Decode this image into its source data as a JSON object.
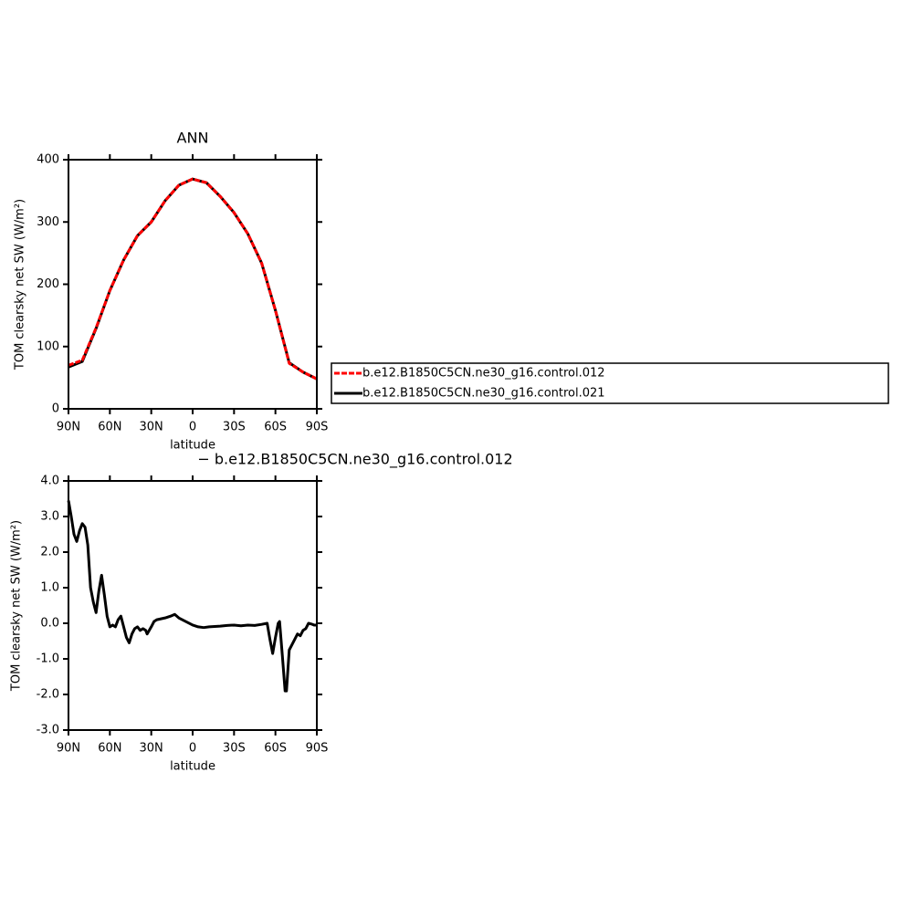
{
  "chart_data": [
    {
      "type": "line",
      "title": "ANN",
      "ylabel": "TOM clearsky net SW (W/m²)",
      "xlabel": "latitude",
      "x": [
        90,
        80,
        70,
        60,
        50,
        40,
        30,
        20,
        10,
        0,
        -10,
        -20,
        -30,
        -40,
        -50,
        -60,
        -70,
        -80,
        -90
      ],
      "series": [
        {
          "name": "b.e12.B1850C5CN.ne30_g16.control.012",
          "color": "#ff0000",
          "dashed": true,
          "values": [
            70,
            78,
            130,
            190,
            239,
            278,
            300,
            334,
            359,
            369,
            363,
            341,
            315,
            281,
            234,
            158,
            73,
            59,
            48
          ]
        },
        {
          "name": "b.e12.B1850C5CN.ne30_g16.control.021",
          "color": "#000000",
          "dashed": false,
          "values": [
            67,
            76,
            129,
            190,
            239,
            278,
            300,
            334,
            359,
            369,
            363,
            341,
            315,
            281,
            234,
            158,
            74,
            59,
            48
          ]
        }
      ],
      "xlim": [
        90,
        -90
      ],
      "ylim": [
        0,
        400
      ],
      "xticks": [
        {
          "value": 90,
          "label": "90N"
        },
        {
          "value": 60,
          "label": "60N"
        },
        {
          "value": 30,
          "label": "30N"
        },
        0,
        {
          "value": -30,
          "label": "30S"
        },
        {
          "value": -60,
          "label": "60S"
        },
        {
          "value": -90,
          "label": "90S"
        }
      ],
      "yticks": [
        0,
        100,
        200,
        300,
        400
      ],
      "legend": "right"
    },
    {
      "type": "line",
      "title": "− b.e12.B1850C5CN.ne30_g16.control.012",
      "ylabel": "TOM clearsky net SW (W/m²)",
      "xlabel": "latitude",
      "x": [
        90,
        88,
        86,
        84,
        82,
        80,
        78,
        76,
        74,
        72,
        70,
        68,
        66,
        64,
        62,
        60,
        58,
        56,
        54,
        52,
        50,
        48,
        46,
        44,
        42,
        40,
        38,
        36,
        34,
        33,
        30,
        28,
        26,
        20,
        16,
        13,
        10,
        5,
        0,
        -4,
        -8,
        -12,
        -20,
        -25,
        -30,
        -35,
        -40,
        -45,
        -50,
        -54,
        -56,
        -58,
        -60,
        -62,
        -63,
        -65,
        -67,
        -68,
        -70,
        -72,
        -74,
        -76,
        -78,
        -80,
        -82,
        -84,
        -86,
        -88,
        -90
      ],
      "series": [
        {
          "color": "#000000",
          "values": [
            3.45,
            3.0,
            2.5,
            2.3,
            2.6,
            2.8,
            2.7,
            2.2,
            1.0,
            0.6,
            0.3,
            0.9,
            1.35,
            0.8,
            0.2,
            -0.1,
            -0.05,
            -0.1,
            0.1,
            0.2,
            -0.1,
            -0.4,
            -0.55,
            -0.3,
            -0.15,
            -0.1,
            -0.2,
            -0.15,
            -0.2,
            -0.3,
            -0.1,
            0.05,
            0.1,
            0.15,
            0.2,
            0.25,
            0.15,
            0.05,
            -0.05,
            -0.1,
            -0.12,
            -0.1,
            -0.08,
            -0.06,
            -0.05,
            -0.07,
            -0.05,
            -0.06,
            -0.03,
            0.0,
            -0.45,
            -0.85,
            -0.4,
            0.0,
            0.05,
            -0.9,
            -1.9,
            -1.9,
            -0.75,
            -0.6,
            -0.45,
            -0.3,
            -0.35,
            -0.2,
            -0.15,
            0.0,
            -0.02,
            -0.05,
            -0.05
          ]
        }
      ],
      "xlim": [
        90,
        -90
      ],
      "ylim": [
        -3,
        4
      ],
      "xticks": [
        {
          "value": 90,
          "label": "90N"
        },
        {
          "value": 60,
          "label": "60N"
        },
        {
          "value": 30,
          "label": "30N"
        },
        0,
        {
          "value": -30,
          "label": "30S"
        },
        {
          "value": -60,
          "label": "60S"
        },
        {
          "value": -90,
          "label": "90S"
        }
      ],
      "yticks": [
        {
          "value": -3,
          "label": "-3.0"
        },
        {
          "value": -2,
          "label": "-2.0"
        },
        {
          "value": -1,
          "label": "-1.0"
        },
        {
          "value": 0,
          "label": "0.0"
        },
        {
          "value": 1,
          "label": "1.0"
        },
        {
          "value": 2,
          "label": "2.0"
        },
        {
          "value": 3,
          "label": "3.0"
        },
        {
          "value": 4,
          "label": "4.0"
        }
      ]
    }
  ]
}
